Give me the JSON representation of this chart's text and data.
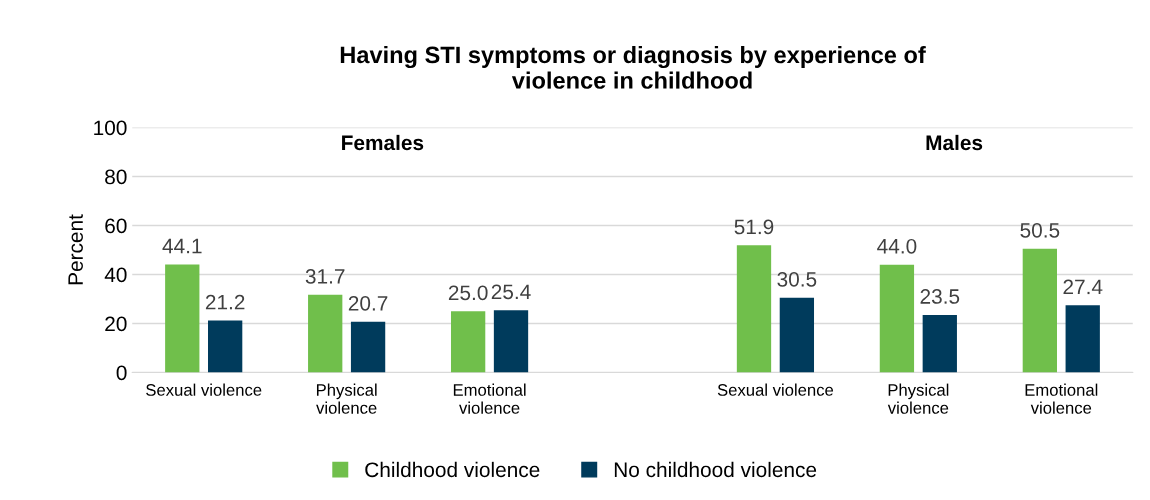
{
  "chart_data": {
    "type": "bar",
    "title": "Having STI symptoms or diagnosis by experience of\nviolence in childhood",
    "ylabel": "Percent",
    "categories": [
      "Sexual violence",
      "Physical\nviolence",
      "Emotional\nviolence",
      null,
      "Sexual violence",
      "Physical\nviolence",
      "Emotional\nviolence"
    ],
    "series": [
      {
        "name": "Childhood violence",
        "color": "#70bf4b",
        "values": [
          44.1,
          31.7,
          25.0,
          null,
          51.9,
          44.0,
          50.5
        ],
        "value_labels": [
          "44.1",
          "31.7",
          "25.0",
          null,
          "51.9",
          "44.0",
          "50.5"
        ]
      },
      {
        "name": "No childhood violence",
        "color": "#003b5c",
        "values": [
          21.2,
          20.7,
          25.4,
          null,
          30.5,
          23.5,
          27.4
        ],
        "value_labels": [
          "21.2",
          "20.7",
          "25.4",
          null,
          "30.5",
          "23.5",
          "27.4"
        ]
      }
    ],
    "annotations": [
      "Females",
      "Males"
    ],
    "ylim": [
      0,
      100
    ],
    "yticks": [
      0,
      20,
      40,
      60,
      80,
      100
    ],
    "grid": "y",
    "legend": "bottom"
  }
}
